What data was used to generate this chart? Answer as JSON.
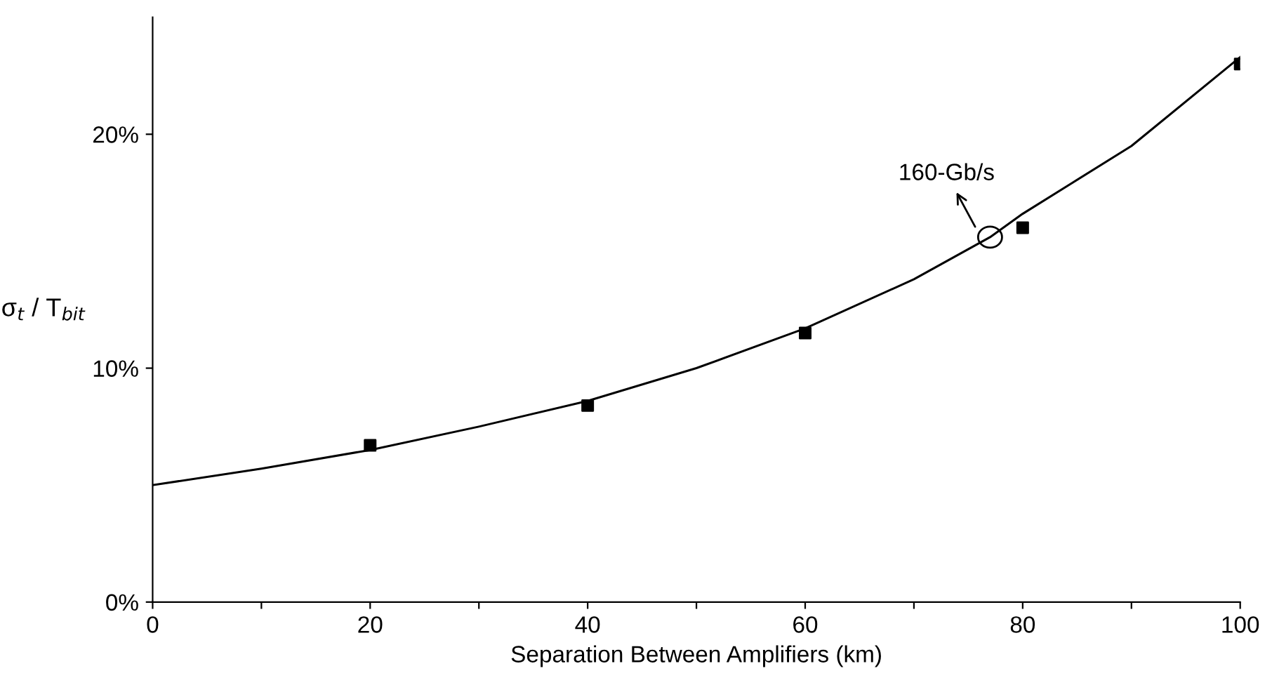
{
  "chart_data": {
    "type": "scatter",
    "xlabel": "Separation Between Amplifiers (km)",
    "ylabel": "σ$_{t}$ / T$_{bit}$",
    "series": [
      {
        "marker": "square",
        "color": "#000000",
        "x": [
          20,
          40,
          60,
          80,
          100
        ],
        "values": [
          6.7,
          8.4,
          11.5,
          16.0,
          23.0
        ]
      },
      {
        "type": "line",
        "marker": "none",
        "line_style": "solid",
        "color": "#000000",
        "x": [
          0,
          10,
          20,
          30,
          40,
          50,
          60,
          70,
          77,
          80,
          90,
          100
        ],
        "values": [
          5.0,
          5.7,
          6.5,
          7.5,
          8.6,
          10.0,
          11.7,
          13.8,
          15.6,
          16.6,
          19.5,
          23.3
        ]
      }
    ],
    "annotations": [
      {
        "text": "160-Gb/s",
        "x": 77,
        "y": 15.6
      }
    ],
    "xlim": [
      0,
      100
    ],
    "xticks": [
      0,
      {
        "value": 10,
        "label": null
      },
      20,
      {
        "value": 30,
        "label": null
      },
      40,
      {
        "value": 50,
        "label": null
      },
      60,
      {
        "value": 70,
        "label": null
      },
      80,
      {
        "value": 90,
        "label": null
      },
      100
    ],
    "ylim": [
      0,
      25
    ],
    "yticks": [
      {
        "value": 0,
        "label": "0%"
      },
      {
        "value": 10,
        "label": "10%"
      },
      {
        "value": 20,
        "label": "20%"
      }
    ],
    "grid": false,
    "legend": false
  }
}
